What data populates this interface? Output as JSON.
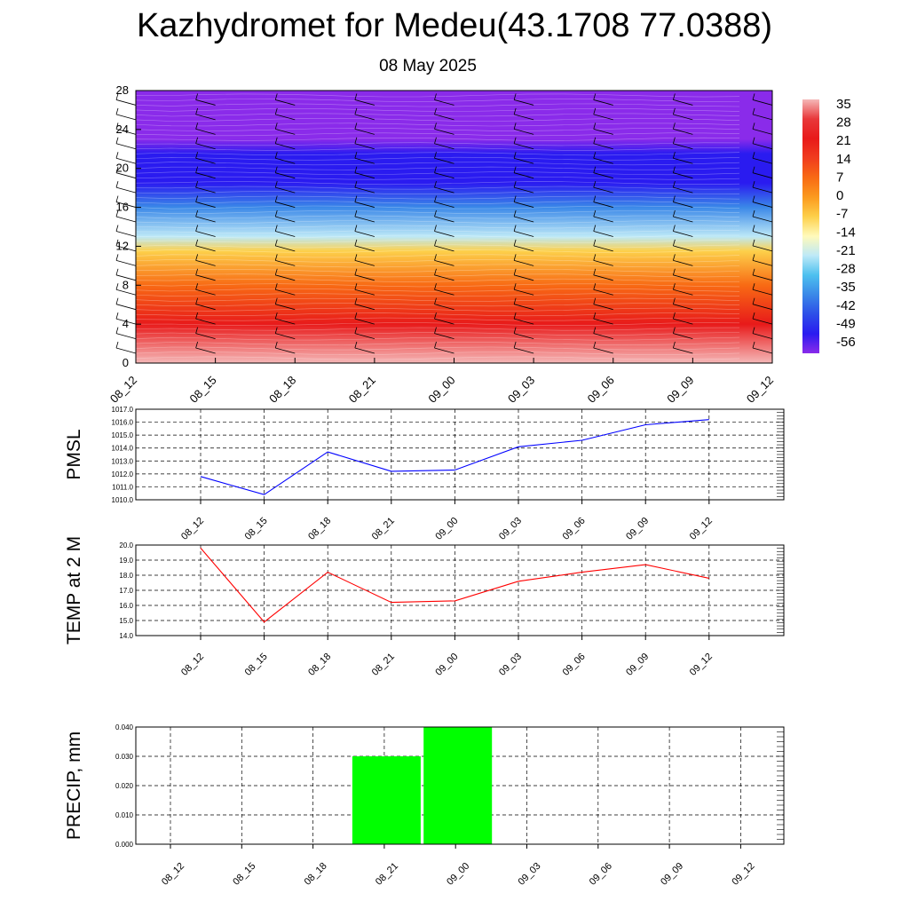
{
  "title": "Kazhydromet for Medeu(43.1708 77.0388)",
  "subtitle": "08 May 2025",
  "chart_data": [
    {
      "type": "heatmap",
      "x_ticks": [
        "08_12",
        "08_15",
        "08_18",
        "08_21",
        "09_00",
        "09_03",
        "09_06",
        "09_09",
        "09_12"
      ],
      "y_ticks": [
        "0",
        "4",
        "8",
        "12",
        "16",
        "20",
        "24",
        "28"
      ],
      "ylim": [
        0,
        28
      ],
      "colorbar": {
        "labels": [
          "35",
          "28",
          "21",
          "14",
          "7",
          "0",
          "-7",
          "-14",
          "-21",
          "-28",
          "-35",
          "-42",
          "-49",
          "-56"
        ],
        "colors": [
          "#f5b8b8",
          "#e8383a",
          "#e81a1a",
          "#f03c1e",
          "#f86a14",
          "#fb9a1e",
          "#fdd04a",
          "#fffabb",
          "#bde9f7",
          "#4dc0ef",
          "#3a88e8",
          "#2d4ee8",
          "#2a1bf0",
          "#8a2bea"
        ]
      },
      "field_stops": [
        {
          "level": 0,
          "value": 32
        },
        {
          "level": 4,
          "value": 22
        },
        {
          "level": 8,
          "value": 8
        },
        {
          "level": 11.5,
          "value": -8
        },
        {
          "level": 13,
          "value": -20
        },
        {
          "level": 16,
          "value": -35
        },
        {
          "level": 18.5,
          "value": -52
        },
        {
          "level": 21.5,
          "value": -48
        },
        {
          "level": 23,
          "value": -60
        },
        {
          "level": 28,
          "value": -60
        }
      ],
      "wind_barbs": true
    },
    {
      "type": "line",
      "ylabel": "PMSL",
      "x_ticks": [
        "08_12",
        "08_15",
        "08_18",
        "08_21",
        "09_00",
        "09_03",
        "09_06",
        "09_09",
        "09_12"
      ],
      "y_ticks": [
        "1010.0",
        "1011.0",
        "1012.0",
        "1013.0",
        "1014.0",
        "1015.0",
        "1016.0",
        "1017.0"
      ],
      "ylim": [
        1010,
        1017
      ],
      "series": [
        {
          "color": "#0000ff",
          "values": [
            1011.8,
            1010.4,
            1013.7,
            1012.2,
            1012.3,
            1014.1,
            1014.6,
            1015.8,
            1016.2
          ]
        }
      ],
      "grid": true
    },
    {
      "type": "line",
      "ylabel": "TEMP at 2 M",
      "x_ticks": [
        "08_12",
        "08_15",
        "08_18",
        "08_21",
        "09_00",
        "09_03",
        "09_06",
        "09_09",
        "09_12"
      ],
      "y_ticks": [
        "14.0",
        "15.0",
        "16.0",
        "17.0",
        "18.0",
        "19.0",
        "20.0"
      ],
      "ylim": [
        14,
        20
      ],
      "series": [
        {
          "color": "#ff0000",
          "values": [
            19.8,
            14.9,
            18.2,
            16.2,
            16.3,
            17.6,
            18.2,
            18.7,
            17.8
          ]
        }
      ],
      "grid": true
    },
    {
      "type": "bar",
      "ylabel": "PRECIP, mm",
      "x_ticks": [
        "08_12",
        "08_15",
        "08_18",
        "08_21",
        "09_00",
        "09_03",
        "09_06",
        "09_09",
        "09_12"
      ],
      "y_ticks": [
        "0.000",
        "0.010",
        "0.020",
        "0.030",
        "0.040"
      ],
      "ylim": [
        0,
        0.04
      ],
      "series": [
        {
          "color": "#00ff00",
          "values": [
            0,
            0,
            0,
            0.03,
            0.04,
            0,
            0,
            0,
            0
          ]
        }
      ],
      "grid": true
    }
  ]
}
